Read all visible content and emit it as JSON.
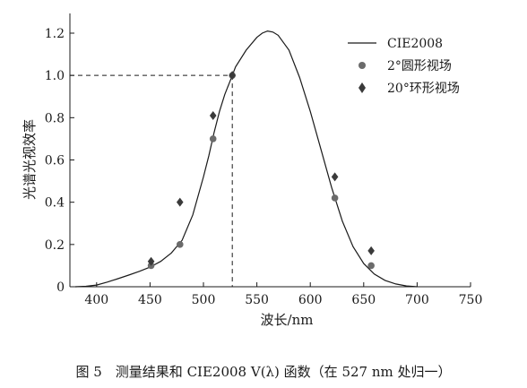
{
  "chart_data": {
    "type": "line",
    "xlabel": "波长/nm",
    "ylabel": "光谱光视效率",
    "xlim": [
      375,
      750
    ],
    "ylim": [
      0,
      1.2
    ],
    "x_ticks": [
      400,
      450,
      500,
      550,
      600,
      650,
      700,
      750
    ],
    "y_ticks": [
      "0",
      "0.2",
      "0.4",
      "0.6",
      "0.8",
      "1.0",
      "1.2"
    ],
    "grid": false,
    "legend_position": "top-right",
    "reference_point": {
      "x": 527,
      "y": 1.0
    },
    "series": [
      {
        "name": "CIE2008",
        "kind": "line",
        "color": "#1a1a1a",
        "x": [
          380,
          390,
          400,
          410,
          420,
          430,
          440,
          450,
          460,
          470,
          480,
          490,
          500,
          505,
          510,
          515,
          520,
          527,
          530,
          540,
          550,
          555,
          560,
          565,
          570,
          580,
          590,
          600,
          610,
          620,
          630,
          640,
          650,
          660,
          670,
          680,
          690,
          700
        ],
        "y": [
          0.0,
          0.002,
          0.008,
          0.022,
          0.038,
          0.055,
          0.073,
          0.093,
          0.12,
          0.16,
          0.22,
          0.34,
          0.52,
          0.62,
          0.73,
          0.83,
          0.91,
          1.0,
          1.04,
          1.12,
          1.18,
          1.2,
          1.21,
          1.205,
          1.19,
          1.12,
          0.99,
          0.83,
          0.65,
          0.47,
          0.31,
          0.19,
          0.11,
          0.06,
          0.03,
          0.013,
          0.004,
          0.0
        ]
      },
      {
        "name": "2°圆形视场",
        "kind": "scatter",
        "marker": "circle",
        "color": "#6b6b6b",
        "x": [
          451,
          478,
          509,
          527,
          623,
          657
        ],
        "y": [
          0.1,
          0.2,
          0.7,
          1.0,
          0.42,
          0.1
        ]
      },
      {
        "name": "20°环形视场",
        "kind": "scatter",
        "marker": "diamond",
        "color": "#3a3a3a",
        "x": [
          451,
          478,
          509,
          527,
          623,
          657
        ],
        "y": [
          0.12,
          0.4,
          0.81,
          1.0,
          0.52,
          0.17
        ]
      }
    ]
  },
  "caption": "图 5　测量结果和 CIE2008 V(λ) 函数（在 527 nm 处归一）"
}
